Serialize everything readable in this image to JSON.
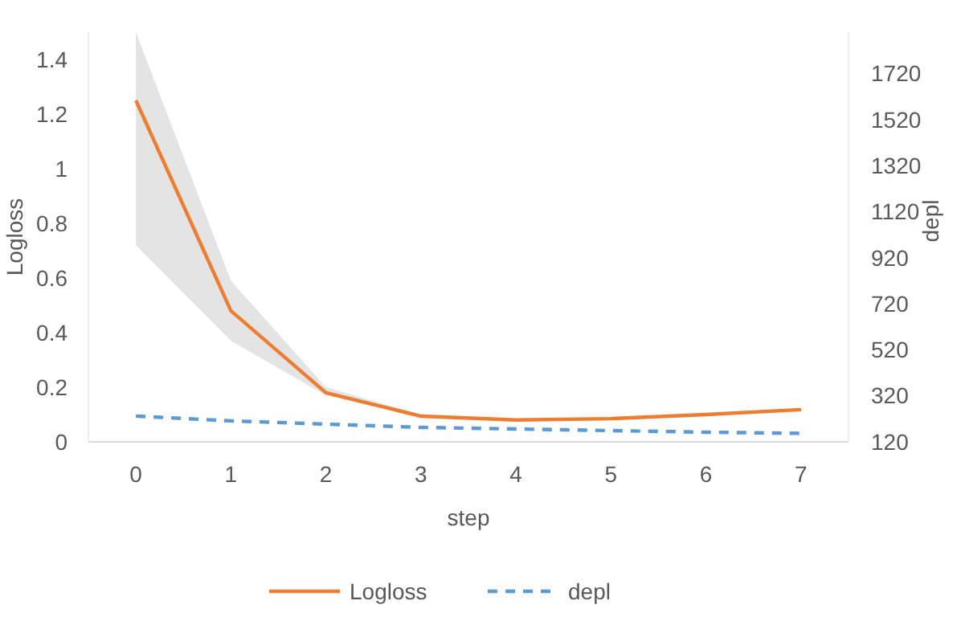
{
  "chart_data": {
    "type": "line",
    "xlabel": "step",
    "ylabel": "Logloss",
    "y2label": "depl",
    "categories": [
      "0",
      "1",
      "2",
      "3",
      "4",
      "5",
      "6",
      "7"
    ],
    "series": [
      {
        "name": "Logloss",
        "color": "#ed7d31",
        "line_style": "solid",
        "values": [
          1.25,
          0.48,
          0.18,
          0.094,
          0.08,
          0.085,
          0.1,
          0.118
        ],
        "lower": [
          0.72,
          0.37,
          0.17,
          0.09,
          0.078,
          0.082,
          0.097,
          0.114
        ],
        "upper": [
          1.5,
          0.59,
          0.2,
          0.1,
          0.084,
          0.09,
          0.104,
          0.122
        ]
      },
      {
        "name": "depl",
        "color": "#5b9bd5",
        "line_style": "dashed",
        "axis": "y2",
        "values": [
          232,
          211,
          197,
          183,
          176,
          169,
          162,
          157
        ]
      }
    ],
    "ylim": [
      0,
      1.5
    ],
    "yticks": [
      0,
      0.2,
      0.4,
      0.6,
      0.8,
      1,
      1.2,
      1.4
    ],
    "y2lim": [
      120,
      1900
    ],
    "y2ticks": [
      120,
      320,
      520,
      720,
      920,
      1120,
      1320,
      1520,
      1720
    ],
    "grid": false,
    "legend": "bottom"
  }
}
